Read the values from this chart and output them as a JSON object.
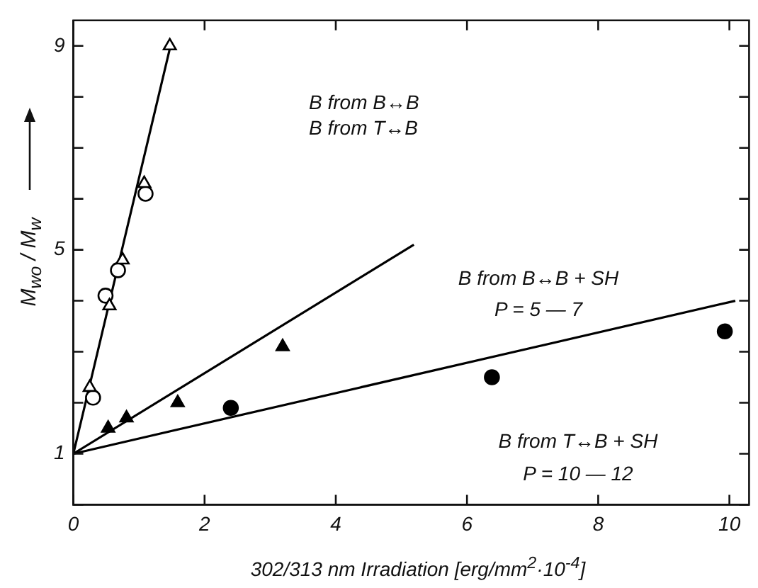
{
  "chart_data": {
    "type": "scatter",
    "xlabel": "302/313 nm Irradiation [erg/mm$^{2}$·10$^{-4}$]",
    "ylabel": "M$_{wo}$ / M$_{w}$",
    "xlim": [
      0,
      10.3
    ],
    "xticks": [
      0,
      2,
      4,
      6,
      8,
      10
    ],
    "ylim": [
      0,
      9.5
    ],
    "yticks": [
      {
        "value": 0,
        "label": null
      },
      1,
      {
        "value": 2,
        "label": null
      },
      {
        "value": 3,
        "label": null
      },
      {
        "value": 4,
        "label": null
      },
      5,
      {
        "value": 6,
        "label": null
      },
      {
        "value": 7,
        "label": null
      },
      {
        "value": 8,
        "label": null
      },
      9
    ],
    "grid": false,
    "legend": false,
    "annotations": [
      "B  from  B↔B",
      "B  from  T↔B",
      "B  from  B↔B + SH",
      "P = 5 — 7",
      "B  from  T↔B + SH",
      "P = 10 — 12"
    ],
    "series": [
      {
        "marker": "triangle",
        "color": "#000000",
        "x": [
          0.25,
          0.55,
          0.75,
          1.08,
          1.47
        ],
        "values": [
          2.3,
          3.9,
          4.8,
          6.3,
          9.0
        ]
      },
      {
        "marker": "circle",
        "color": "#000000",
        "x": [
          0.3,
          0.49,
          0.68,
          1.1
        ],
        "values": [
          2.1,
          4.1,
          4.6,
          6.1
        ]
      },
      {
        "marker": "triangle",
        "color": "#000000",
        "x": [
          0.53,
          0.81,
          1.59,
          3.19
        ],
        "values": [
          1.5,
          1.7,
          2.0,
          3.1
        ]
      },
      {
        "marker": "circle",
        "color": "#000000",
        "x": [
          2.4,
          6.38,
          9.93
        ],
        "values": [
          1.9,
          2.5,
          3.4
        ]
      },
      {
        "type": "line",
        "marker": "none",
        "line_style": "solid",
        "color": "#000000",
        "x": [
          0,
          1.48
        ],
        "values": [
          1,
          9
        ]
      },
      {
        "type": "line",
        "marker": "none",
        "line_style": "solid",
        "color": "#000000",
        "x": [
          0,
          5.19
        ],
        "values": [
          1,
          5.1
        ]
      },
      {
        "type": "line",
        "marker": "none",
        "line_style": "solid",
        "color": "#000000",
        "x": [
          0,
          10.09
        ],
        "values": [
          1,
          4.0
        ]
      }
    ]
  }
}
